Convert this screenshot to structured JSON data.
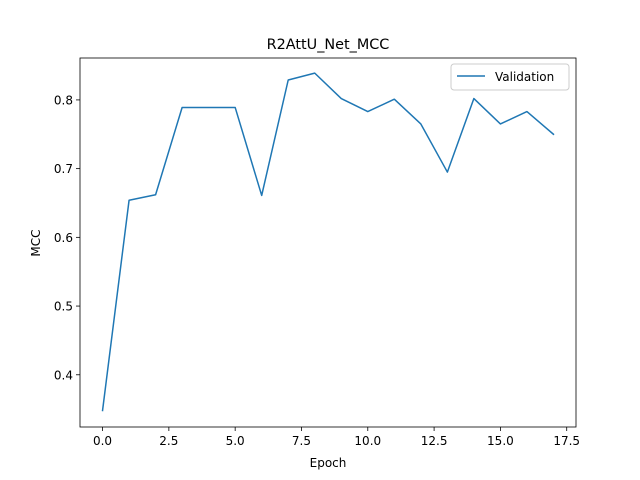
{
  "chart_data": {
    "type": "line",
    "title": "R2AttU_Net_MCC",
    "xlabel": "Epoch",
    "ylabel": "MCC",
    "xlim": [
      -0.85,
      17.85
    ],
    "ylim": [
      0.324,
      0.861
    ],
    "xticks": [
      0.0,
      2.5,
      5.0,
      7.5,
      10.0,
      12.5,
      15.0,
      17.5
    ],
    "xtick_labels": [
      "0.0",
      "2.5",
      "5.0",
      "7.5",
      "10.0",
      "12.5",
      "15.0",
      "17.5"
    ],
    "yticks": [
      0.4,
      0.5,
      0.6,
      0.7,
      0.8
    ],
    "ytick_labels": [
      "0.4",
      "0.5",
      "0.6",
      "0.7",
      "0.8"
    ],
    "grid": false,
    "legend_position": "top-right",
    "series": [
      {
        "name": "Validation",
        "color": "#1f77b4",
        "x": [
          0,
          1,
          2,
          3,
          4,
          5,
          6,
          7,
          8,
          9,
          10,
          11,
          12,
          13,
          14,
          15,
          16,
          17
        ],
        "values": [
          0.348,
          0.654,
          0.662,
          0.789,
          0.789,
          0.789,
          0.661,
          0.829,
          0.839,
          0.802,
          0.783,
          0.801,
          0.765,
          0.695,
          0.802,
          0.765,
          0.783,
          0.75
        ]
      }
    ]
  }
}
